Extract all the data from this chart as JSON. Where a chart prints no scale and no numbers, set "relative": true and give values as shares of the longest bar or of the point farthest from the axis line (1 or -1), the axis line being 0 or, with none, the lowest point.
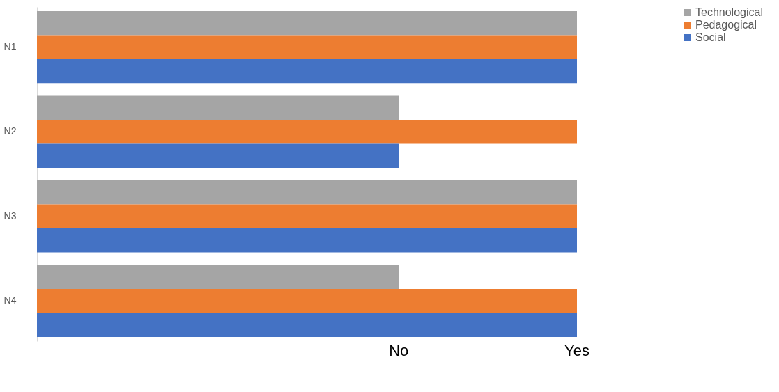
{
  "chart_data": {
    "type": "bar",
    "orientation": "horizontal",
    "relative": true,
    "categories": [
      "N1",
      "N2",
      "N3",
      "N4"
    ],
    "series": [
      {
        "name": "Technological",
        "color": "#a5a5a5",
        "values": [
          1,
          0.67,
          1,
          0.67
        ]
      },
      {
        "name": "Pedagogical",
        "color": "#ed7d31",
        "values": [
          1,
          1,
          1,
          1
        ]
      },
      {
        "name": "Social",
        "color": "#4472c4",
        "values": [
          1,
          0.67,
          1,
          1
        ]
      }
    ],
    "annotations": [
      "No",
      "Yes"
    ],
    "legend": "right"
  }
}
